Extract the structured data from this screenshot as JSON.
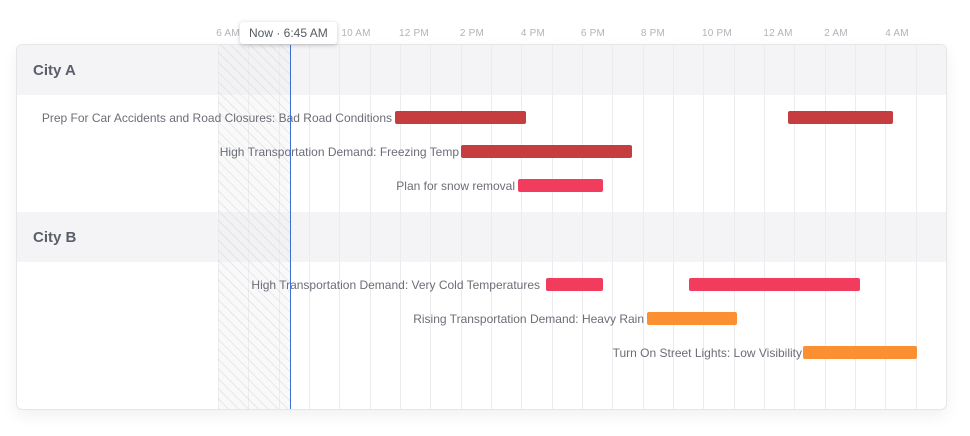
{
  "timeline": {
    "now_label": "Now · 6:45 AM",
    "ticks": [
      "6 AM",
      "10 AM",
      "12 PM",
      "2 PM",
      "4 PM",
      "6 PM",
      "8 PM",
      "10 PM",
      "12 AM",
      "2 AM",
      "4 AM"
    ]
  },
  "colors": {
    "severe": "#c53d3f",
    "moderate": "#f23c5e",
    "minor": "#fb9033",
    "now_line": "#3d6fd6"
  },
  "groups": [
    {
      "name": "City A",
      "rows": [
        {
          "label": "Prep For Car Accidents and Road Closures: Bad Road Conditions"
        },
        {
          "label": "High Transportation Demand: Freezing Temp"
        },
        {
          "label": "Plan for snow removal"
        }
      ]
    },
    {
      "name": "City B",
      "rows": [
        {
          "label": "High Transportation Demand: Very Cold Temperatures"
        },
        {
          "label": "Rising Transportation Demand: Heavy Rain"
        },
        {
          "label": "Turn On Street Lights: Low Visibility"
        }
      ]
    }
  ]
}
